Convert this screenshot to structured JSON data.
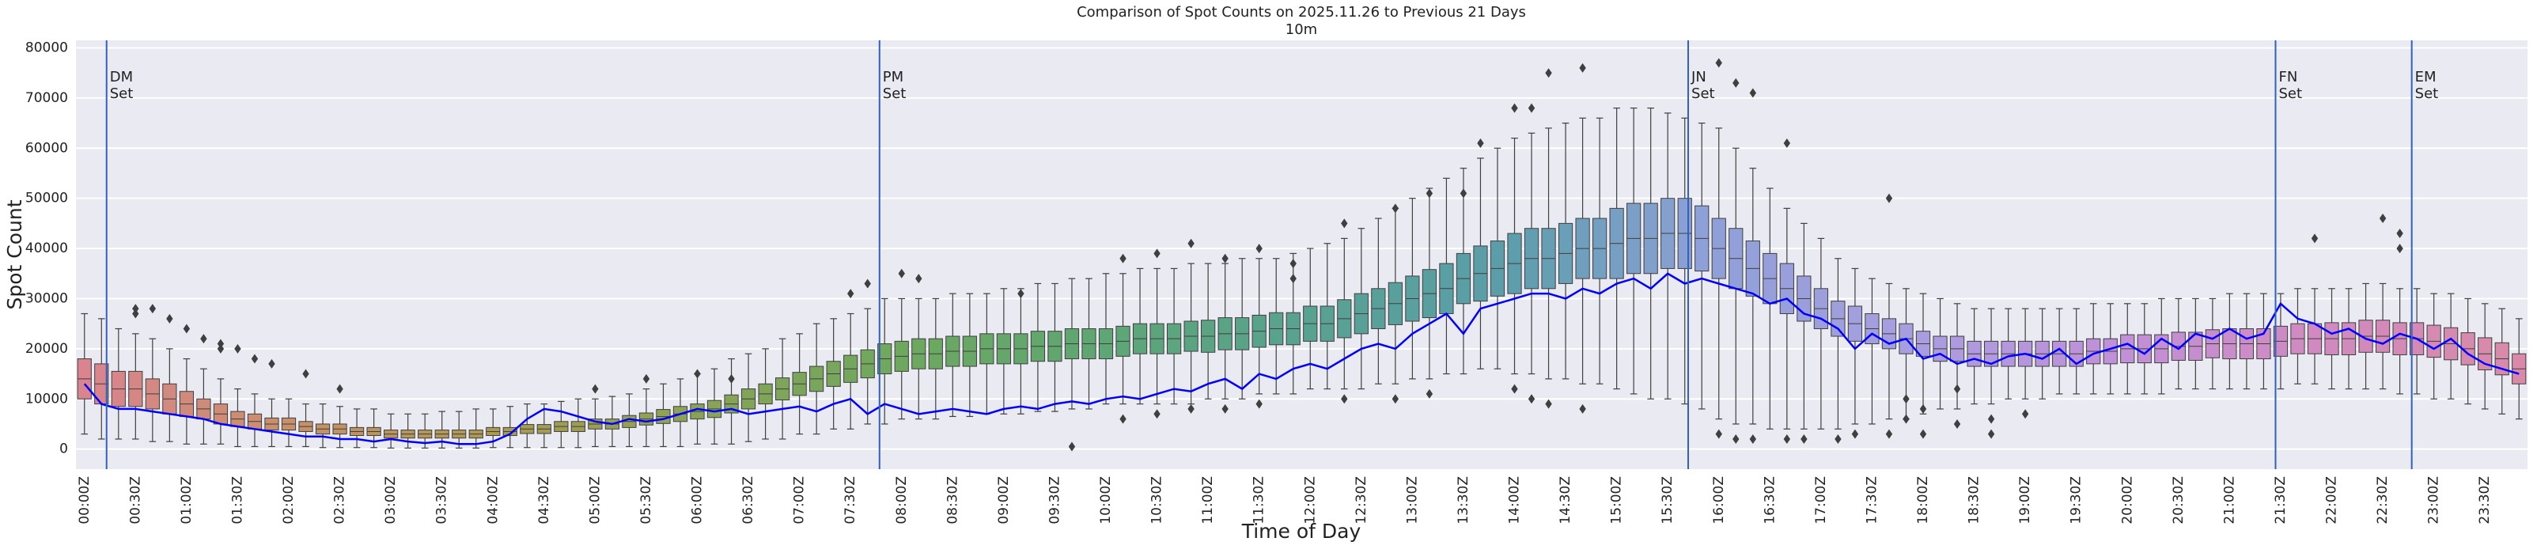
{
  "chart_data": {
    "type": "box",
    "title": "Comparison of Spot Counts on 2025.11.26 to Previous 21 Days",
    "subtitle": "10m",
    "xlabel": "Time of Day",
    "ylabel": "Spot Count",
    "categories": [
      "00:00Z",
      null,
      null,
      "00:30Z",
      null,
      null,
      "01:00Z",
      null,
      null,
      "01:30Z",
      null,
      null,
      "02:00Z",
      null,
      null,
      "02:30Z",
      null,
      null,
      "03:00Z",
      null,
      null,
      "03:30Z",
      null,
      null,
      "04:00Z",
      null,
      null,
      "04:30Z",
      null,
      null,
      "05:00Z",
      null,
      null,
      "05:30Z",
      null,
      null,
      "06:00Z",
      null,
      null,
      "06:30Z",
      null,
      null,
      "07:00Z",
      null,
      null,
      "07:30Z",
      null,
      null,
      "08:00Z",
      null,
      null,
      "08:30Z",
      null,
      null,
      "09:00Z",
      null,
      null,
      "09:30Z",
      null,
      null,
      "10:00Z",
      null,
      null,
      "10:30Z",
      null,
      null,
      "11:00Z",
      null,
      null,
      "11:30Z",
      null,
      null,
      "12:00Z",
      null,
      null,
      "12:30Z",
      null,
      null,
      "13:00Z",
      null,
      null,
      "13:30Z",
      null,
      null,
      "14:00Z",
      null,
      null,
      "14:30Z",
      null,
      null,
      "15:00Z",
      null,
      null,
      "15:30Z",
      null,
      null,
      "16:00Z",
      null,
      null,
      "16:30Z",
      null,
      null,
      "17:00Z",
      null,
      null,
      "17:30Z",
      null,
      null,
      "18:00Z",
      null,
      null,
      "18:30Z",
      null,
      null,
      "19:00Z",
      null,
      null,
      "19:30Z",
      null,
      null,
      "20:00Z",
      null,
      null,
      "20:30Z",
      null,
      null,
      "21:00Z",
      null,
      null,
      "21:30Z",
      null,
      null,
      "22:00Z",
      null,
      null,
      "22:30Z",
      null,
      null,
      "23:00Z",
      null,
      null,
      "23:30Z",
      null,
      null
    ],
    "median": [
      14000,
      13000,
      12000,
      12000,
      11000,
      10000,
      9000,
      8000,
      7000,
      6000,
      5500,
      5000,
      5000,
      4500,
      4000,
      4000,
      3500,
      3500,
      3000,
      3000,
      3000,
      3000,
      3000,
      3000,
      3500,
      3500,
      4000,
      4000,
      4500,
      4500,
      5000,
      5000,
      5500,
      6000,
      6500,
      7000,
      7500,
      8000,
      9000,
      10000,
      11000,
      12000,
      13000,
      14000,
      15000,
      16000,
      17000,
      18000,
      18500,
      19000,
      19000,
      19500,
      19500,
      20000,
      20000,
      20000,
      20500,
      20500,
      21000,
      21000,
      21000,
      21500,
      22000,
      22000,
      22000,
      22500,
      22500,
      23000,
      23000,
      23500,
      24000,
      24000,
      25000,
      25000,
      26000,
      27000,
      28000,
      29000,
      30000,
      31000,
      32000,
      34000,
      35000,
      36000,
      37000,
      38000,
      38000,
      39000,
      40000,
      40000,
      41000,
      42000,
      42000,
      43000,
      43000,
      42000,
      40000,
      38000,
      36000,
      34000,
      32000,
      30000,
      28000,
      26000,
      25000,
      24000,
      23000,
      22000,
      21000,
      20000,
      20000,
      19000,
      19000,
      19000,
      19000,
      19000,
      19000,
      19000,
      19500,
      19500,
      20000,
      20000,
      20000,
      20500,
      20500,
      21000,
      21000,
      21000,
      21000,
      21500,
      22000,
      22000,
      22000,
      22000,
      22500,
      22500,
      22000,
      22000,
      21500,
      21000,
      20000,
      19000,
      18000,
      16000
    ],
    "q1": [
      10000,
      9000,
      8500,
      8500,
      8000,
      7000,
      6500,
      6000,
      5000,
      4500,
      4000,
      3800,
      3800,
      3500,
      3000,
      3000,
      2700,
      2700,
      2200,
      2200,
      2200,
      2200,
      2200,
      2200,
      2700,
      2700,
      3100,
      3100,
      3500,
      3500,
      4000,
      4000,
      4300,
      4800,
      5100,
      5500,
      6000,
      6300,
      7200,
      8000,
      9000,
      9800,
      10700,
      11500,
      12500,
      13300,
      14200,
      15000,
      15500,
      16000,
      16000,
      16500,
      16500,
      17000,
      17000,
      17000,
      17500,
      17500,
      18000,
      18000,
      18000,
      18500,
      19000,
      19000,
      19000,
      19500,
      19300,
      19800,
      19800,
      20300,
      20800,
      20800,
      21500,
      21500,
      22200,
      23000,
      24000,
      24800,
      25500,
      26200,
      27000,
      29000,
      29500,
      30500,
      31000,
      32000,
      32000,
      33000,
      34000,
      34000,
      34000,
      35000,
      35000,
      36000,
      36000,
      35500,
      34000,
      32000,
      30500,
      29000,
      27000,
      25500,
      24000,
      22500,
      21500,
      21000,
      20000,
      19000,
      18500,
      17500,
      17500,
      16500,
      16500,
      16500,
      16500,
      16500,
      16500,
      16500,
      17000,
      17000,
      17200,
      17200,
      17200,
      17700,
      17700,
      18200,
      18000,
      18000,
      18000,
      18500,
      19000,
      19000,
      18800,
      18800,
      19300,
      19300,
      18800,
      18800,
      18300,
      17800,
      16800,
      15800,
      14800,
      13000
    ],
    "q3": [
      18000,
      17000,
      15500,
      15500,
      14000,
      13000,
      11500,
      10000,
      9000,
      7500,
      7000,
      6200,
      6200,
      5500,
      5000,
      5000,
      4300,
      4300,
      3800,
      3800,
      3800,
      3800,
      3800,
      3800,
      4300,
      4300,
      4900,
      4900,
      5500,
      5500,
      6000,
      6000,
      6700,
      7200,
      7900,
      8500,
      9000,
      9700,
      10800,
      12000,
      13000,
      14200,
      15300,
      16500,
      17500,
      18700,
      19800,
      21000,
      21500,
      22000,
      22000,
      22500,
      22500,
      23000,
      23000,
      23000,
      23500,
      23500,
      24000,
      24000,
      24000,
      24500,
      25000,
      25000,
      25000,
      25500,
      25700,
      26200,
      26200,
      26700,
      27200,
      27200,
      28500,
      28500,
      29800,
      31000,
      32000,
      33200,
      34500,
      35800,
      37000,
      39000,
      40500,
      41500,
      43000,
      44000,
      44000,
      45000,
      46000,
      46000,
      48000,
      49000,
      49000,
      50000,
      50000,
      48500,
      46000,
      44000,
      41500,
      39000,
      37000,
      34500,
      32000,
      29500,
      28500,
      27000,
      26000,
      25000,
      23500,
      22500,
      22500,
      21500,
      21500,
      21500,
      21500,
      21500,
      21500,
      21500,
      22000,
      22000,
      22800,
      22800,
      22800,
      23300,
      23300,
      23800,
      24000,
      24000,
      24000,
      24500,
      25000,
      25000,
      25200,
      25200,
      25700,
      25700,
      25200,
      25200,
      24700,
      24200,
      23200,
      22200,
      21200,
      19000
    ],
    "whislo": [
      3000,
      2000,
      2000,
      2000,
      1500,
      1500,
      1000,
      1000,
      1000,
      500,
      500,
      500,
      500,
      500,
      300,
      300,
      300,
      300,
      200,
      200,
      200,
      200,
      200,
      200,
      300,
      300,
      300,
      300,
      300,
      300,
      500,
      500,
      500,
      500,
      500,
      500,
      1000,
      1000,
      1000,
      1500,
      2000,
      2000,
      3000,
      3000,
      4000,
      4000,
      5000,
      5000,
      6000,
      6000,
      6000,
      6500,
      6500,
      7000,
      7000,
      7000,
      7500,
      7500,
      8000,
      8000,
      9000,
      9000,
      9000,
      9000,
      9000,
      9000,
      10000,
      10000,
      10000,
      11000,
      11000,
      11000,
      12000,
      12000,
      12000,
      12000,
      13000,
      13000,
      14000,
      14000,
      15000,
      15000,
      16000,
      16000,
      15000,
      15000,
      14000,
      14000,
      13000,
      13000,
      12000,
      11000,
      10000,
      10000,
      9000,
      8000,
      6000,
      5000,
      5000,
      4000,
      4000,
      4000,
      4000,
      4000,
      5000,
      5000,
      6000,
      6000,
      7000,
      8000,
      8000,
      9000,
      9000,
      10000,
      10000,
      10000,
      11000,
      11000,
      11000,
      11000,
      11000,
      11000,
      11000,
      12000,
      12000,
      12000,
      12000,
      12000,
      12000,
      12000,
      13000,
      13000,
      12000,
      12000,
      12000,
      12000,
      11000,
      11000,
      10000,
      10000,
      9000,
      8000,
      7000,
      6000
    ],
    "whishi": [
      27000,
      26000,
      24000,
      23000,
      22000,
      20000,
      18000,
      16000,
      14000,
      12000,
      11000,
      10000,
      10000,
      9000,
      9000,
      8500,
      8000,
      8000,
      7000,
      7000,
      7000,
      7500,
      7500,
      8000,
      8000,
      8500,
      9000,
      9000,
      9500,
      10000,
      10000,
      10500,
      11000,
      12000,
      13000,
      14000,
      15000,
      16000,
      18000,
      19000,
      20000,
      22000,
      23000,
      25000,
      26000,
      27000,
      28000,
      30000,
      30000,
      30000,
      30000,
      31000,
      31000,
      31000,
      32000,
      32000,
      33000,
      33000,
      34000,
      34000,
      35000,
      35000,
      36000,
      36000,
      36000,
      37000,
      37000,
      37000,
      38000,
      38000,
      38000,
      39000,
      40000,
      41000,
      42000,
      44000,
      46000,
      48000,
      50000,
      52000,
      54000,
      56000,
      58000,
      60000,
      62000,
      63000,
      64000,
      65000,
      66000,
      66000,
      68000,
      68000,
      68000,
      67000,
      66000,
      65000,
      64000,
      60000,
      56000,
      52000,
      48000,
      45000,
      42000,
      38000,
      36000,
      34000,
      33000,
      32000,
      31000,
      30000,
      29000,
      28000,
      28000,
      28000,
      28000,
      28000,
      28000,
      28000,
      29000,
      29000,
      29000,
      29000,
      30000,
      30000,
      30000,
      30000,
      31000,
      31000,
      31000,
      31000,
      32000,
      32000,
      32000,
      32000,
      33000,
      33000,
      32000,
      32000,
      31000,
      31000,
      30000,
      29000,
      28000,
      26000
    ],
    "fliers": [
      {
        "category": 3,
        "values": [
          28000,
          27000
        ]
      },
      {
        "category": 4,
        "values": [
          28000
        ]
      },
      {
        "category": 5,
        "values": [
          26000
        ]
      },
      {
        "category": 6,
        "values": [
          24000
        ]
      },
      {
        "category": 7,
        "values": [
          22000
        ]
      },
      {
        "category": 8,
        "values": [
          21000,
          20000
        ]
      },
      {
        "category": 9,
        "values": [
          20000
        ]
      },
      {
        "category": 10,
        "values": [
          18000
        ]
      },
      {
        "category": 11,
        "values": [
          17000
        ]
      },
      {
        "category": 13,
        "values": [
          15000
        ]
      },
      {
        "category": 15,
        "values": [
          12000
        ]
      },
      {
        "category": 30,
        "values": [
          12000
        ]
      },
      {
        "category": 33,
        "values": [
          14000
        ]
      },
      {
        "category": 36,
        "values": [
          15000
        ]
      },
      {
        "category": 38,
        "values": [
          14000
        ]
      },
      {
        "category": 45,
        "values": [
          31000
        ]
      },
      {
        "category": 46,
        "values": [
          33000
        ]
      },
      {
        "category": 48,
        "values": [
          35000
        ]
      },
      {
        "category": 49,
        "values": [
          34000
        ]
      },
      {
        "category": 55,
        "values": [
          31000
        ]
      },
      {
        "category": 58,
        "values": [
          500
        ]
      },
      {
        "category": 61,
        "values": [
          6000,
          38000
        ]
      },
      {
        "category": 63,
        "values": [
          7000,
          39000
        ]
      },
      {
        "category": 65,
        "values": [
          8000,
          41000
        ]
      },
      {
        "category": 67,
        "values": [
          8000,
          38000
        ]
      },
      {
        "category": 69,
        "values": [
          9000,
          40000
        ]
      },
      {
        "category": 71,
        "values": [
          37000,
          34000
        ]
      },
      {
        "category": 74,
        "values": [
          10000,
          45000
        ]
      },
      {
        "category": 77,
        "values": [
          10000,
          48000
        ]
      },
      {
        "category": 79,
        "values": [
          51000,
          11000
        ]
      },
      {
        "category": 81,
        "values": [
          51000
        ]
      },
      {
        "category": 82,
        "values": [
          61000
        ]
      },
      {
        "category": 84,
        "values": [
          68000,
          12000
        ]
      },
      {
        "category": 85,
        "values": [
          68000,
          10000
        ]
      },
      {
        "category": 86,
        "values": [
          75000,
          9000
        ]
      },
      {
        "category": 88,
        "values": [
          76000,
          8000
        ]
      },
      {
        "category": 96,
        "values": [
          77000,
          3000
        ]
      },
      {
        "category": 97,
        "values": [
          73000,
          2000
        ]
      },
      {
        "category": 98,
        "values": [
          71000,
          2000
        ]
      },
      {
        "category": 100,
        "values": [
          61000,
          2000
        ]
      },
      {
        "category": 101,
        "values": [
          2000
        ]
      },
      {
        "category": 103,
        "values": [
          2000
        ]
      },
      {
        "category": 104,
        "values": [
          3000
        ]
      },
      {
        "category": 106,
        "values": [
          50000,
          3000
        ]
      },
      {
        "category": 107,
        "values": [
          10000,
          6000
        ]
      },
      {
        "category": 108,
        "values": [
          8000,
          3000
        ]
      },
      {
        "category": 110,
        "values": [
          12000,
          5000
        ]
      },
      {
        "category": 112,
        "values": [
          6000,
          3000
        ]
      },
      {
        "category": 114,
        "values": [
          7000
        ]
      },
      {
        "category": 131,
        "values": [
          42000
        ]
      },
      {
        "category": 135,
        "values": [
          46000
        ]
      },
      {
        "category": 136,
        "values": [
          43000,
          40000
        ]
      }
    ],
    "line": {
      "color": "#0000ff",
      "values": [
        13000,
        9000,
        8000,
        8000,
        7500,
        7000,
        6500,
        6000,
        5000,
        4500,
        4000,
        3500,
        3000,
        2500,
        2500,
        2000,
        2000,
        1500,
        2000,
        1500,
        1200,
        1500,
        1000,
        1000,
        1500,
        3000,
        6000,
        8000,
        7500,
        6500,
        5500,
        5000,
        6000,
        5500,
        6000,
        7000,
        8000,
        7500,
        8000,
        7000,
        7500,
        8000,
        8500,
        7500,
        9000,
        10000,
        7000,
        9000,
        8000,
        7000,
        7500,
        8000,
        7500,
        7000,
        8000,
        8500,
        8000,
        9000,
        9500,
        9000,
        10000,
        10500,
        10000,
        11000,
        12000,
        11500,
        13000,
        14000,
        12000,
        15000,
        14000,
        16000,
        17000,
        16000,
        18000,
        20000,
        21000,
        20000,
        23000,
        25000,
        27000,
        23000,
        28000,
        29000,
        30000,
        31000,
        31000,
        30000,
        32000,
        31000,
        33000,
        34000,
        32000,
        35000,
        33000,
        34000,
        33000,
        32000,
        31000,
        29000,
        30000,
        27000,
        26000,
        24000,
        20000,
        23000,
        21000,
        22000,
        18000,
        19000,
        17000,
        18000,
        17000,
        18500,
        19000,
        18000,
        20000,
        17000,
        19000,
        20000,
        21000,
        19000,
        22000,
        20000,
        23000,
        22000,
        24000,
        22000,
        23000,
        29000,
        26000,
        25000,
        23000,
        24000,
        22000,
        21000,
        23000,
        22000,
        20000,
        22000,
        19000,
        17000,
        16000,
        15000
      ]
    },
    "markers": [
      {
        "x": 1.3,
        "label": [
          "DM",
          "Set"
        ]
      },
      {
        "x": 46.7,
        "label": [
          "PM",
          "Set"
        ]
      },
      {
        "x": 94.2,
        "label": [
          "JN",
          "Set"
        ]
      },
      {
        "x": 128.7,
        "label": [
          "FN",
          "Set"
        ]
      },
      {
        "x": 136.7,
        "label": [
          "EM",
          "Set"
        ]
      }
    ],
    "marker_color": "#3060c0",
    "ylim": [
      -4000,
      81500
    ],
    "yticks": [
      0,
      10000,
      20000,
      30000,
      40000,
      50000,
      60000,
      70000,
      80000
    ],
    "grid": true,
    "background": "#eaeaf2",
    "box_edge_color": "#3f3f3f",
    "palette": [
      "#d9848e",
      "#c8906a",
      "#ac9a52",
      "#8aa356",
      "#6ea85e",
      "#5ea674",
      "#58a290",
      "#5b9eaa",
      "#8ea0d8",
      "#a89ee0",
      "#c090d8",
      "#d08ac0",
      "#d88aa8"
    ]
  }
}
